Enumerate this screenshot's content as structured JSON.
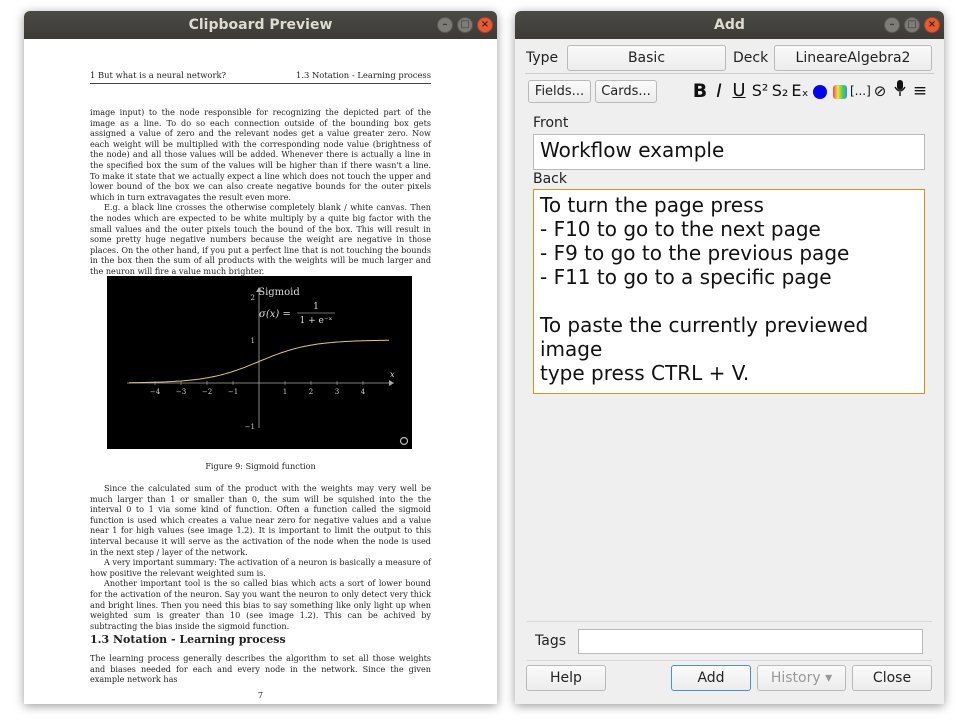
{
  "preview": {
    "title": "Clipboard Preview",
    "header_left": "1   But what is a neural network?",
    "header_right": "1.3   Notation - Learning process",
    "p1": "image input) to the node responsible for recognizing the depicted part of the image as a line. To do so each connection outside of the bounding box gets assigned a value of zero and the relevant nodes get a value greater zero. Now each weight will be multiplied with the corresponding node value (brightness of the node) and all those values will be added. Whenever there is actually a line in the specified box the sum of the values will be higher than if there wasn't a line. To make it state that we actually expect a line which does not touch the upper and lower bound of the box we can also create negative bounds for the outer pixels which in turn extravagates the result even more.",
    "p2": "E.g. a black line crosses the otherwise completely blank / white canvas. Then the nodes which are expected to be white multiply by a quite big factor with the small values and the outer pixels touch the bound of the box. This will result in some pretty huge negative numbers because the weight are negative in those places. On the other hand, if you put a perfect line that is not touching the bounds in the box then the sum of all products with the weights will be much larger and the neuron will fire a value much brighter.",
    "fig_title": "Sigmoid",
    "fig_formula": "σ(x) =",
    "fig_num": "1",
    "fig_den": "1 + e⁻ˣ",
    "fig_x": "x",
    "fig_y_ticks": [
      "2",
      "1",
      "−1"
    ],
    "fig_x_ticks": [
      "−4",
      "−3",
      "−2",
      "−1",
      "1",
      "2",
      "3",
      "4"
    ],
    "caption": "Figure 9: Sigmoid function",
    "p3": "Since the calculated sum of the product with the weights may very well be much larger than 1 or smaller than 0, the sum will be squished into the the interval 0 to 1 via some kind of function. Often a function called the sigmoid function is used which creates a value near zero for negative values and a value near 1 for high values (see image 1.2). It is important to limit the output to this interval because it will serve as the activation of the node when the node is used in the next step / layer of the network.",
    "p4": "A very important summary: The activation of a neuron is basically a measure of how positive the relevant weighted sum is.",
    "p5": "Another important tool is the so called bias which acts a sort of lower bound for the activation of the neuron. Say you want the neuron to only detect very thick and bright lines. Then you need this bias to say something like only light up when weighted sum is greater than 10 (see image 1.2). This can be achived by subtracting the bias inside the sigmoid function.",
    "section": "1.3   Notation - Learning process",
    "p6": "The learning process generally describes the algorithm to set all those weights and biases needed for each and every node in the network. Since the given example network has",
    "page_number": "7"
  },
  "add": {
    "title": "Add",
    "type_label": "Type",
    "type_value": "Basic",
    "deck_label": "Deck",
    "deck_value": "LineareAlgebra2",
    "fields_button": "Fields...",
    "cards_button": "Cards...",
    "front_label": "Front",
    "front_value": "Workflow example",
    "back_label": "Back",
    "back_value": "To turn the page press\n- F10 to go to the next page\n- F9 to go to the previous page\n- F11 to go to a specific page\n\nTo paste the currently previewed image\ntype press CTRL + V.",
    "tags_label": "Tags",
    "tags_value": "",
    "help_button": "Help",
    "add_button": "Add",
    "history_button": "History ▾",
    "close_button": "Close",
    "toolbar": {
      "bold": "B",
      "italic": "I",
      "underline": "U",
      "superscript": "S²",
      "subscript": "S₂",
      "clear": "Eₓ",
      "cloze": "[...]"
    }
  },
  "colors": {
    "titlebar": "#3c3b37",
    "accent": "#e58d0c",
    "text_color_swatch": "#0000ff"
  }
}
